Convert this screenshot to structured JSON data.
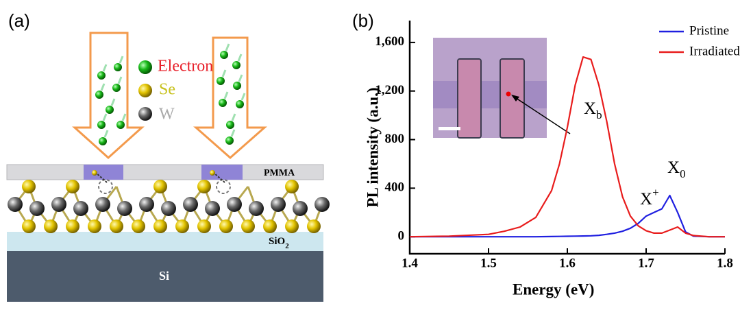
{
  "schematic": {
    "panel_label": "(a)",
    "legend": [
      "Electron",
      "Se",
      "W"
    ],
    "layers": {
      "pmma": "PMMA",
      "oxide": {
        "text": "SiO",
        "sub": "2"
      },
      "substrate": "Si"
    }
  },
  "chart_data": {
    "type": "line",
    "panel_label": "(b)",
    "x_label": "Energy (eV)",
    "y_label": "PL intensity (a.u.)",
    "x": [
      1.4,
      1.45,
      1.5,
      1.52,
      1.54,
      1.56,
      1.58,
      1.59,
      1.6,
      1.61,
      1.62,
      1.63,
      1.64,
      1.65,
      1.66,
      1.67,
      1.68,
      1.69,
      1.7,
      1.71,
      1.72,
      1.73,
      1.74,
      1.75,
      1.76,
      1.78,
      1.8
    ],
    "series": [
      {
        "name": "Pristine",
        "color": "#1f1fe0",
        "values": [
          0,
          0,
          0,
          0,
          0,
          0,
          2,
          3,
          4,
          5,
          6,
          8,
          12,
          20,
          30,
          45,
          70,
          110,
          170,
          200,
          230,
          340,
          200,
          40,
          5,
          0,
          0
        ]
      },
      {
        "name": "Irradiated",
        "color": "#e81c1c",
        "values": [
          0,
          5,
          20,
          45,
          80,
          160,
          380,
          600,
          900,
          1250,
          1480,
          1460,
          1250,
          950,
          600,
          330,
          170,
          90,
          50,
          30,
          30,
          55,
          80,
          30,
          10,
          0,
          0
        ]
      }
    ],
    "xlim": [
      1.4,
      1.8
    ],
    "xticks": [
      1.4,
      1.5,
      1.6,
      1.7,
      1.8
    ],
    "ylim": [
      -140,
      1780
    ],
    "yticks": [
      0,
      400,
      800,
      {
        "value": 1200,
        "label": "1,200"
      },
      {
        "value": 1600,
        "label": "1,600"
      }
    ],
    "legend": "upper right",
    "annotations": [
      {
        "text": "X",
        "sub": "b"
      },
      {
        "text": "X",
        "sup": "+"
      },
      {
        "text": "X",
        "sub": "0"
      }
    ]
  }
}
